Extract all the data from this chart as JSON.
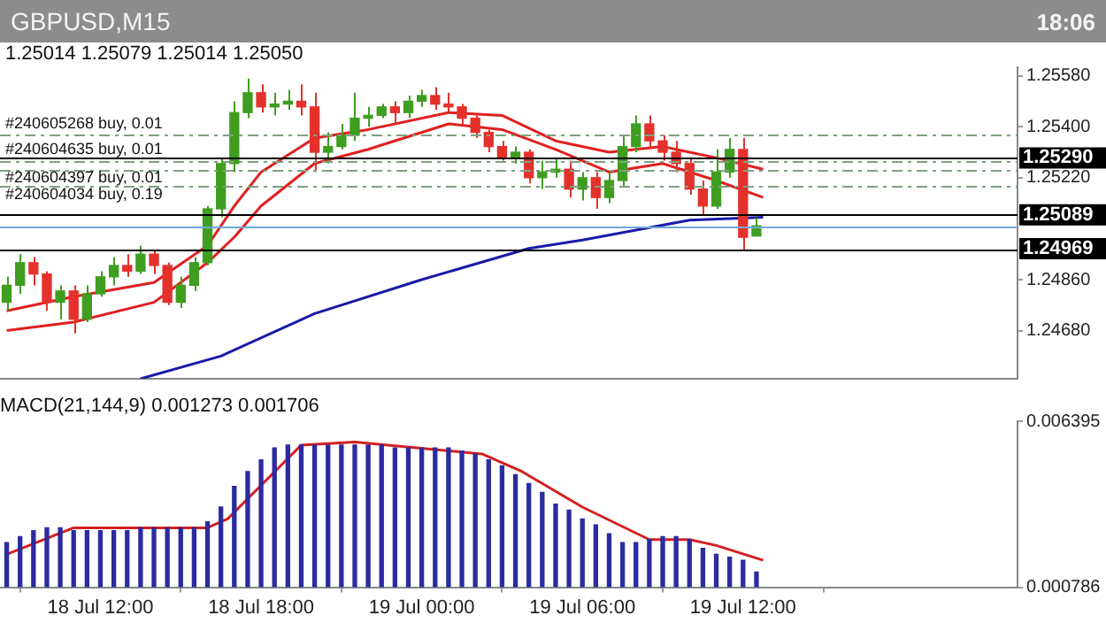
{
  "chart_data": [
    {
      "type": "candlestick",
      "title": "GBPUSD,M15",
      "annotations": [
        "18:06",
        "1.25014 1.25079 1.25014 1.25050"
      ],
      "x": [
        "--07-18T08:30",
        "--07-18T09:00",
        "--07-18T09:30",
        "--07-18T10:00",
        "--07-18T10:30",
        "--07-18T11:00",
        "--07-18T11:30",
        "--07-18T12:00",
        "--07-18T12:30",
        "--07-18T13:00",
        "--07-18T13:30",
        "--07-18T14:00",
        "--07-18T14:30",
        "--07-18T15:00",
        "--07-18T15:30",
        "--07-18T16:00",
        "--07-18T16:30",
        "--07-18T17:00",
        "--07-18T17:30",
        "--07-18T18:00",
        "--07-18T18:30",
        "--07-18T19:00",
        "--07-18T19:30",
        "--07-18T20:00",
        "--07-18T20:30",
        "--07-18T21:00",
        "--07-18T21:30",
        "--07-18T22:00",
        "--07-18T22:30",
        "--07-18T23:00",
        "--07-18T23:30",
        "--07-19T00:00",
        "--07-19T00:30",
        "--07-19T01:00",
        "--07-19T01:30",
        "--07-19T02:00",
        "--07-19T02:30",
        "--07-19T03:00",
        "--07-19T03:30",
        "--07-19T04:00",
        "--07-19T04:30",
        "--07-19T05:00",
        "--07-19T05:30",
        "--07-19T06:00",
        "--07-19T06:30",
        "--07-19T07:00",
        "--07-19T07:30",
        "--07-19T08:00",
        "--07-19T08:30",
        "--07-19T09:00",
        "--07-19T09:30",
        "--07-19T10:00",
        "--07-19T10:30",
        "--07-19T11:00",
        "--07-19T11:30",
        "--07-19T12:00",
        "--07-19T12:30"
      ],
      "ohlc": [
        [
          1.2478,
          1.2487,
          1.2475,
          1.2484
        ],
        [
          1.2484,
          1.2495,
          1.2481,
          1.2492
        ],
        [
          1.2492,
          1.2494,
          1.2484,
          1.2488
        ],
        [
          1.2488,
          1.2489,
          1.2475,
          1.2478
        ],
        [
          1.2478,
          1.2484,
          1.2472,
          1.2482
        ],
        [
          1.2482,
          1.2484,
          1.2467,
          1.2472
        ],
        [
          1.2472,
          1.2484,
          1.2471,
          1.2481
        ],
        [
          1.2481,
          1.2489,
          1.248,
          1.2487
        ],
        [
          1.2487,
          1.2494,
          1.2484,
          1.2491
        ],
        [
          1.2491,
          1.2495,
          1.2487,
          1.2489
        ],
        [
          1.2489,
          1.2498,
          1.2488,
          1.2495
        ],
        [
          1.2495,
          1.2496,
          1.2488,
          1.2491
        ],
        [
          1.2491,
          1.2492,
          1.2477,
          1.2478
        ],
        [
          1.2478,
          1.2487,
          1.2476,
          1.2484
        ],
        [
          1.2484,
          1.2494,
          1.2482,
          1.2492
        ],
        [
          1.2492,
          1.2512,
          1.2491,
          1.2511
        ],
        [
          1.2511,
          1.2529,
          1.2508,
          1.2527
        ],
        [
          1.2527,
          1.2549,
          1.2524,
          1.2545
        ],
        [
          1.2545,
          1.2557,
          1.2543,
          1.2552
        ],
        [
          1.2552,
          1.2555,
          1.2545,
          1.2547
        ],
        [
          1.2547,
          1.2552,
          1.2544,
          1.2548
        ],
        [
          1.2548,
          1.2553,
          1.2546,
          1.2549
        ],
        [
          1.2549,
          1.2555,
          1.2544,
          1.2547
        ],
        [
          1.2547,
          1.2552,
          1.2524,
          1.2531
        ],
        [
          1.2531,
          1.2538,
          1.2527,
          1.2533
        ],
        [
          1.2533,
          1.2541,
          1.2532,
          1.2537
        ],
        [
          1.2537,
          1.2552,
          1.2535,
          1.2543
        ],
        [
          1.2543,
          1.2547,
          1.254,
          1.2544
        ],
        [
          1.2544,
          1.2548,
          1.2543,
          1.2547
        ],
        [
          1.2547,
          1.2549,
          1.2541,
          1.2545
        ],
        [
          1.2545,
          1.2551,
          1.2543,
          1.2549
        ],
        [
          1.2549,
          1.2553,
          1.2547,
          1.2551
        ],
        [
          1.2551,
          1.2554,
          1.2546,
          1.2548
        ],
        [
          1.2548,
          1.2552,
          1.2545,
          1.2547
        ],
        [
          1.2547,
          1.2548,
          1.2541,
          1.2543
        ],
        [
          1.2543,
          1.2544,
          1.2536,
          1.2538
        ],
        [
          1.2538,
          1.2539,
          1.2531,
          1.2533
        ],
        [
          1.2533,
          1.2535,
          1.2528,
          1.2529
        ],
        [
          1.2529,
          1.2533,
          1.2527,
          1.2531
        ],
        [
          1.2531,
          1.2532,
          1.252,
          1.2522
        ],
        [
          1.2522,
          1.2528,
          1.2518,
          1.2524
        ],
        [
          1.2524,
          1.2529,
          1.2522,
          1.2525
        ],
        [
          1.2525,
          1.2528,
          1.2515,
          1.2518
        ],
        [
          1.2518,
          1.2524,
          1.2514,
          1.2522
        ],
        [
          1.2522,
          1.2524,
          1.2511,
          1.2515
        ],
        [
          1.2515,
          1.2524,
          1.2513,
          1.2521
        ],
        [
          1.2521,
          1.2537,
          1.2519,
          1.2533
        ],
        [
          1.2533,
          1.2544,
          1.2531,
          1.2541
        ],
        [
          1.2541,
          1.2544,
          1.2532,
          1.2535
        ],
        [
          1.2535,
          1.2537,
          1.2528,
          1.2531
        ],
        [
          1.2531,
          1.2535,
          1.2524,
          1.2527
        ],
        [
          1.2527,
          1.2529,
          1.2516,
          1.2518
        ],
        [
          1.2518,
          1.2521,
          1.2509,
          1.2512
        ],
        [
          1.2512,
          1.2532,
          1.2511,
          1.2524
        ],
        [
          1.2524,
          1.2536,
          1.2522,
          1.2532
        ],
        [
          1.2532,
          1.2536,
          1.2496,
          1.2501
        ],
        [
          1.25014,
          1.25079,
          1.25014,
          1.2505
        ]
      ],
      "colors": [
        "#3f9d20",
        "#3f9d20",
        "#e4312b",
        "#e4312b",
        "#3f9d20",
        "#e4312b",
        "#3f9d20",
        "#3f9d20",
        "#3f9d20",
        "#e4312b",
        "#3f9d20",
        "#e4312b",
        "#e4312b",
        "#3f9d20",
        "#3f9d20",
        "#3f9d20",
        "#3f9d20",
        "#3f9d20",
        "#3f9d20",
        "#e4312b",
        "#3f9d20",
        "#3f9d20",
        "#e4312b",
        "#e4312b",
        "#3f9d20",
        "#3f9d20",
        "#3f9d20",
        "#3f9d20",
        "#3f9d20",
        "#e4312b",
        "#3f9d20",
        "#3f9d20",
        "#e4312b",
        "#e4312b",
        "#e4312b",
        "#e4312b",
        "#e4312b",
        "#e4312b",
        "#3f9d20",
        "#e4312b",
        "#3f9d20",
        "#3f9d20",
        "#e4312b",
        "#3f9d20",
        "#e4312b",
        "#3f9d20",
        "#3f9d20",
        "#3f9d20",
        "#e4312b",
        "#e4312b",
        "#e4312b",
        "#e4312b",
        "#e4312b",
        "#3f9d20",
        "#3f9d20",
        "#e4312b",
        "#3f9d20"
      ],
      "series": [
        {
          "type": "line",
          "color": "#e02020",
          "x": [
            "--07-18T08:30",
            "--07-18T11:00",
            "--07-18T14:00",
            "--07-18T16:00",
            "--07-18T17:00",
            "--07-18T18:00",
            "--07-18T20:00",
            "--07-18T22:00",
            "--07-19T01:00",
            "--07-19T03:00",
            "--07-19T05:00",
            "--07-19T07:00",
            "--07-19T09:00",
            "--07-19T11:00",
            "--07-19T12:45"
          ],
          "values": [
            1.2475,
            1.248,
            1.2485,
            1.2498,
            1.2512,
            1.2524,
            1.2536,
            1.2539,
            1.2545,
            1.2544,
            1.2535,
            1.2531,
            1.2533,
            1.2529,
            1.2525
          ]
        },
        {
          "type": "line",
          "color": "#e02020",
          "x": [
            "--07-18T08:30",
            "--07-18T11:00",
            "--07-18T14:00",
            "--07-18T16:00",
            "--07-18T17:00",
            "--07-18T18:00",
            "--07-18T20:00",
            "--07-18T22:00",
            "--07-19T01:00",
            "--07-19T03:00",
            "--07-19T05:00",
            "--07-19T07:00",
            "--07-19T09:00",
            "--07-19T11:00",
            "--07-19T12:45"
          ],
          "values": [
            1.2468,
            1.2471,
            1.2478,
            1.2492,
            1.2501,
            1.2512,
            1.2527,
            1.2532,
            1.2541,
            1.2539,
            1.2532,
            1.2524,
            1.2527,
            1.2521,
            1.2515
          ]
        },
        {
          "type": "line",
          "color": "#1a1aa8",
          "x": [
            "--07-18T13:30",
            "--07-18T16:30",
            "--07-18T20:00",
            "--07-19T00:00",
            "--07-19T04:00",
            "--07-19T06:00",
            "--07-19T10:00",
            "--07-19T12:45"
          ],
          "values": [
            1.2451,
            1.2459,
            1.2474,
            1.2486,
            1.2497,
            1.25,
            1.2507,
            1.2508
          ]
        }
      ],
      "ref_lines": [
        {
          "axis": "y",
          "value": 1.2537,
          "label": "#240605268 buy, 0.01",
          "color": "#7fa07f",
          "line_style": "dashed"
        },
        {
          "axis": "y",
          "value": 1.2528,
          "label": "#240604635 buy, 0.01",
          "color": "#7fa07f",
          "line_style": "dashed"
        },
        {
          "axis": "y",
          "value": 1.2525,
          "label": "#240604397 buy, 0.01",
          "color": "#7fa07f",
          "line_style": "dashed"
        },
        {
          "axis": "y",
          "value": 1.2519,
          "label": "#240604034 buy, 0.19",
          "color": "#7fa07f",
          "line_style": "dashed"
        },
        {
          "axis": "y",
          "value": 1.2529,
          "label": "1.25290",
          "color": "#000000",
          "line_style": "solid"
        },
        {
          "axis": "y",
          "value": 1.25089,
          "label": "1.25089",
          "color": "#000000",
          "line_style": "solid"
        },
        {
          "axis": "y",
          "value": 1.2505,
          "color": "#6ea8d8",
          "line_style": "solid"
        },
        {
          "axis": "y",
          "value": 1.24969,
          "label": "1.24969",
          "color": "#000000",
          "line_style": "solid"
        }
      ],
      "xlim": [
        "--07-18T08:15",
        "--07-19T22:15"
      ],
      "ylim": [
        1.2451,
        1.2561
      ],
      "yticks": [
        {
          "value": 1.2558,
          "label": "1.25580"
        },
        {
          "value": 1.254,
          "label": "1.25400"
        },
        {
          "value": 1.2522,
          "label": "1.25220"
        },
        {
          "value": 1.2486,
          "label": "1.24860"
        },
        {
          "value": 1.2468,
          "label": "1.24680"
        }
      ],
      "tick_labels": "y"
    },
    {
      "type": "bar",
      "title": "MACD(21,144,9) 0.001273 0.001706",
      "x": [
        "--07-18T08:30",
        "--07-18T09:00",
        "--07-18T09:30",
        "--07-18T10:00",
        "--07-18T10:30",
        "--07-18T11:00",
        "--07-18T11:30",
        "--07-18T12:00",
        "--07-18T12:30",
        "--07-18T13:00",
        "--07-18T13:30",
        "--07-18T14:00",
        "--07-18T14:30",
        "--07-18T15:00",
        "--07-18T15:30",
        "--07-18T16:00",
        "--07-18T16:30",
        "--07-18T17:00",
        "--07-18T17:30",
        "--07-18T18:00",
        "--07-18T18:30",
        "--07-18T19:00",
        "--07-18T19:30",
        "--07-18T20:00",
        "--07-18T20:30",
        "--07-18T21:00",
        "--07-18T21:30",
        "--07-18T22:00",
        "--07-18T22:30",
        "--07-18T23:00",
        "--07-18T23:30",
        "--07-19T00:00",
        "--07-19T00:30",
        "--07-19T01:00",
        "--07-19T01:30",
        "--07-19T02:00",
        "--07-19T02:30",
        "--07-19T03:00",
        "--07-19T03:30",
        "--07-19T04:00",
        "--07-19T04:30",
        "--07-19T05:00",
        "--07-19T05:30",
        "--07-19T06:00",
        "--07-19T06:30",
        "--07-19T07:00",
        "--07-19T07:30",
        "--07-19T08:00",
        "--07-19T08:30",
        "--07-19T09:00",
        "--07-19T09:30",
        "--07-19T10:00",
        "--07-19T10:30",
        "--07-19T11:00",
        "--07-19T11:30",
        "--07-19T12:00",
        "--07-19T12:30"
      ],
      "series": [
        {
          "type": "bar",
          "color": "#2b2ba0",
          "values": [
            0.0023,
            0.0025,
            0.0027,
            0.0028,
            0.0028,
            0.0027,
            0.0027,
            0.0027,
            0.0027,
            0.0027,
            0.0028,
            0.0028,
            0.0028,
            0.0028,
            0.0028,
            0.003,
            0.0035,
            0.0042,
            0.0047,
            0.0051,
            0.0055,
            0.0056,
            0.0056,
            0.0056,
            0.0056,
            0.0056,
            0.0056,
            0.0056,
            0.0056,
            0.0055,
            0.0055,
            0.0055,
            0.0055,
            0.0055,
            0.0054,
            0.0053,
            0.0051,
            0.0049,
            0.0046,
            0.0043,
            0.004,
            0.0036,
            0.0034,
            0.0031,
            0.0029,
            0.0026,
            0.0023,
            0.0023,
            0.0024,
            0.0025,
            0.0025,
            0.0024,
            0.0021,
            0.0019,
            0.0018,
            0.0017,
            0.0013
          ]
        },
        {
          "type": "line",
          "color": "#d42020",
          "x": [
            "--07-18T08:30",
            "--07-18T11:00",
            "--07-18T16:00",
            "--07-18T16:45",
            "--07-18T19:30",
            "--07-18T21:30",
            "--07-19T02:15",
            "--07-19T03:45",
            "--07-19T06:00",
            "--07-19T08:30",
            "--07-19T10:00",
            "--07-19T11:00",
            "--07-19T12:45"
          ],
          "values": [
            0.0019,
            0.0028,
            0.0028,
            0.0031,
            0.0056,
            0.0057,
            0.0053,
            0.0047,
            0.0035,
            0.0024,
            0.0024,
            0.0022,
            0.0017
          ]
        }
      ],
      "xlim": [
        "--07-18T08:15",
        "--07-19T22:15"
      ],
      "ylim": [
        0.000786,
        0.006395
      ],
      "yticks": [
        0.000786,
        0.006395
      ],
      "xticks": [
        {
          "value": "--07-18T12:00",
          "label": "18 Jul 12:00"
        },
        {
          "value": "--07-18T18:00",
          "label": "18 Jul 18:00"
        },
        {
          "value": "--07-19T00:00",
          "label": "19 Jul 00:00"
        },
        {
          "value": "--07-19T06:00",
          "label": "19 Jul 06:00"
        },
        {
          "value": "--07-19T12:00",
          "label": "19 Jul 12:00"
        }
      ]
    }
  ]
}
